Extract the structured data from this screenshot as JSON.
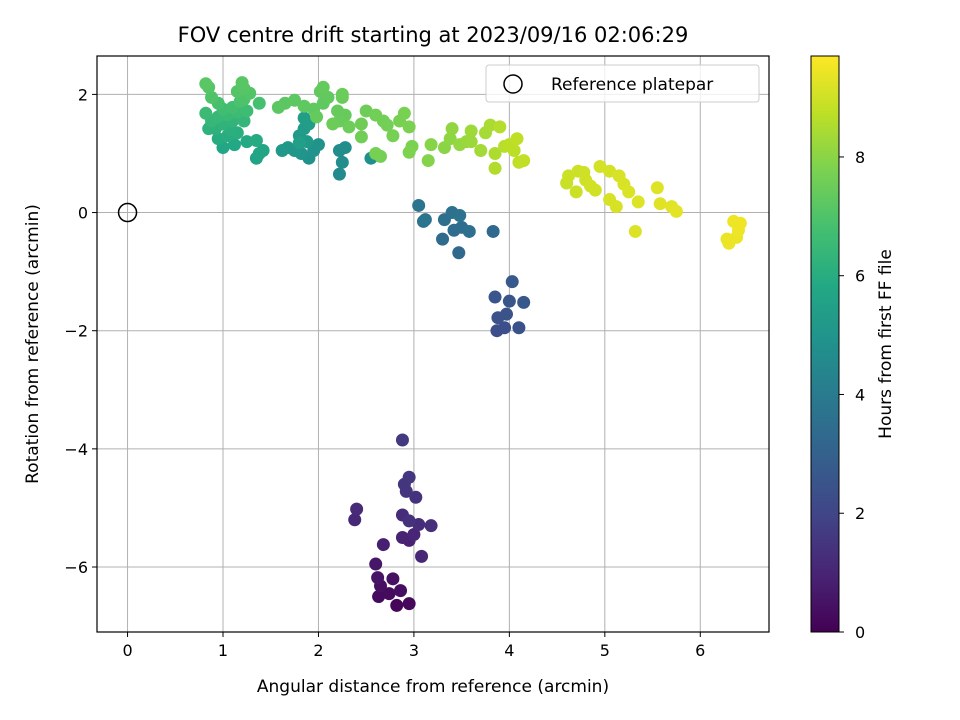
{
  "chart_data": {
    "type": "scatter",
    "title": "FOV centre drift starting at 2023/09/16 02:06:29",
    "xlabel": "Angular distance from reference (arcmin)",
    "ylabel": "Rotation from reference (arcmin)",
    "xlim": [
      -0.32,
      6.72
    ],
    "ylim": [
      -7.1,
      2.65
    ],
    "xticks": [
      0,
      1,
      2,
      3,
      4,
      5,
      6
    ],
    "yticks": [
      -6,
      -4,
      -2,
      0,
      2
    ],
    "xtick_labels": [
      "0",
      "1",
      "2",
      "3",
      "4",
      "5",
      "6"
    ],
    "ytick_labels": [
      "−6",
      "−4",
      "−2",
      "0",
      "2"
    ],
    "grid": true,
    "legend": {
      "placement": "top-right",
      "entries": [
        {
          "label": "Reference platepar",
          "marker": "open-circle"
        }
      ]
    },
    "reference_point": {
      "x": 0,
      "y": 0
    },
    "colorbar": {
      "label": "Hours from first FF file",
      "range": [
        0,
        9.7
      ],
      "ticks": [
        0,
        2,
        4,
        6,
        8
      ],
      "tick_labels": [
        "0",
        "2",
        "4",
        "6",
        "8"
      ],
      "colormap": "viridis"
    },
    "points": [
      {
        "x": 2.82,
        "y": -6.65,
        "t": 0.15
      },
      {
        "x": 2.95,
        "y": -6.62,
        "t": 0.2
      },
      {
        "x": 2.63,
        "y": -6.5,
        "t": 0.25
      },
      {
        "x": 2.74,
        "y": -6.45,
        "t": 0.3
      },
      {
        "x": 2.86,
        "y": -6.4,
        "t": 0.35
      },
      {
        "x": 2.65,
        "y": -6.32,
        "t": 0.4
      },
      {
        "x": 2.78,
        "y": -6.2,
        "t": 0.45
      },
      {
        "x": 2.62,
        "y": -6.18,
        "t": 0.5
      },
      {
        "x": 2.6,
        "y": -5.95,
        "t": 0.6
      },
      {
        "x": 2.68,
        "y": -5.62,
        "t": 0.85
      },
      {
        "x": 2.95,
        "y": -5.55,
        "t": 0.9
      },
      {
        "x": 2.88,
        "y": -5.5,
        "t": 0.95
      },
      {
        "x": 3.0,
        "y": -5.45,
        "t": 1.0
      },
      {
        "x": 3.08,
        "y": -5.82,
        "t": 1.05
      },
      {
        "x": 2.38,
        "y": -5.2,
        "t": 1.1
      },
      {
        "x": 2.4,
        "y": -5.02,
        "t": 1.15
      },
      {
        "x": 2.88,
        "y": -5.12,
        "t": 1.2
      },
      {
        "x": 3.05,
        "y": -5.28,
        "t": 1.25
      },
      {
        "x": 3.18,
        "y": -5.3,
        "t": 1.3
      },
      {
        "x": 2.95,
        "y": -5.22,
        "t": 1.35
      },
      {
        "x": 3.02,
        "y": -4.82,
        "t": 1.4
      },
      {
        "x": 2.92,
        "y": -4.72,
        "t": 1.45
      },
      {
        "x": 2.9,
        "y": -4.6,
        "t": 1.5
      },
      {
        "x": 2.95,
        "y": -4.48,
        "t": 1.55
      },
      {
        "x": 2.88,
        "y": -3.85,
        "t": 1.6
      },
      {
        "x": 3.87,
        "y": -2.0,
        "t": 2.3
      },
      {
        "x": 3.95,
        "y": -1.95,
        "t": 2.35
      },
      {
        "x": 4.1,
        "y": -1.95,
        "t": 2.4
      },
      {
        "x": 3.88,
        "y": -1.78,
        "t": 2.45
      },
      {
        "x": 3.97,
        "y": -1.72,
        "t": 2.5
      },
      {
        "x": 3.85,
        "y": -1.43,
        "t": 2.55
      },
      {
        "x": 4.0,
        "y": -1.5,
        "t": 2.6
      },
      {
        "x": 4.15,
        "y": -1.52,
        "t": 2.65
      },
      {
        "x": 4.03,
        "y": -1.17,
        "t": 2.7
      },
      {
        "x": 3.83,
        "y": -0.32,
        "t": 3.25
      },
      {
        "x": 3.47,
        "y": -0.68,
        "t": 3.3
      },
      {
        "x": 3.3,
        "y": -0.45,
        "t": 3.35
      },
      {
        "x": 3.42,
        "y": -0.3,
        "t": 3.4
      },
      {
        "x": 3.5,
        "y": -0.25,
        "t": 3.45
      },
      {
        "x": 3.58,
        "y": -0.32,
        "t": 3.5
      },
      {
        "x": 3.32,
        "y": -0.12,
        "t": 3.55
      },
      {
        "x": 3.4,
        "y": 0.0,
        "t": 3.6
      },
      {
        "x": 3.48,
        "y": -0.05,
        "t": 3.65
      },
      {
        "x": 3.1,
        "y": -0.15,
        "t": 3.7
      },
      {
        "x": 3.12,
        "y": -0.12,
        "t": 3.75
      },
      {
        "x": 3.05,
        "y": 0.12,
        "t": 3.8
      },
      {
        "x": 2.22,
        "y": 0.65,
        "t": 4.6
      },
      {
        "x": 2.25,
        "y": 0.85,
        "t": 4.65
      },
      {
        "x": 2.22,
        "y": 1.05,
        "t": 4.7
      },
      {
        "x": 2.28,
        "y": 1.1,
        "t": 4.75
      },
      {
        "x": 2.55,
        "y": 0.92,
        "t": 4.8
      },
      {
        "x": 1.9,
        "y": 0.92,
        "t": 4.85
      },
      {
        "x": 1.95,
        "y": 1.05,
        "t": 4.9
      },
      {
        "x": 2.0,
        "y": 1.15,
        "t": 4.95
      },
      {
        "x": 1.82,
        "y": 1.0,
        "t": 5.0
      },
      {
        "x": 1.75,
        "y": 1.05,
        "t": 5.05
      },
      {
        "x": 1.68,
        "y": 1.1,
        "t": 5.1
      },
      {
        "x": 1.62,
        "y": 1.05,
        "t": 5.15
      },
      {
        "x": 1.88,
        "y": 1.2,
        "t": 5.2
      },
      {
        "x": 1.8,
        "y": 1.3,
        "t": 5.25
      },
      {
        "x": 1.85,
        "y": 1.42,
        "t": 5.3
      },
      {
        "x": 1.9,
        "y": 1.5,
        "t": 5.35
      },
      {
        "x": 1.85,
        "y": 1.6,
        "t": 5.4
      },
      {
        "x": 1.8,
        "y": 1.18,
        "t": 5.45
      },
      {
        "x": 1.35,
        "y": 0.92,
        "t": 5.6
      },
      {
        "x": 1.38,
        "y": 1.0,
        "t": 5.65
      },
      {
        "x": 1.42,
        "y": 1.05,
        "t": 5.7
      },
      {
        "x": 1.0,
        "y": 1.1,
        "t": 5.75
      },
      {
        "x": 1.12,
        "y": 1.15,
        "t": 5.8
      },
      {
        "x": 1.25,
        "y": 1.2,
        "t": 5.85
      },
      {
        "x": 1.35,
        "y": 1.22,
        "t": 5.9
      },
      {
        "x": 0.95,
        "y": 1.25,
        "t": 5.95
      },
      {
        "x": 1.05,
        "y": 1.3,
        "t": 6.0
      },
      {
        "x": 1.15,
        "y": 1.35,
        "t": 6.05
      },
      {
        "x": 1.08,
        "y": 1.4,
        "t": 6.1
      },
      {
        "x": 0.92,
        "y": 1.42,
        "t": 6.15
      },
      {
        "x": 0.85,
        "y": 1.42,
        "t": 6.2
      },
      {
        "x": 1.0,
        "y": 1.5,
        "t": 6.25
      },
      {
        "x": 1.1,
        "y": 1.55,
        "t": 6.3
      },
      {
        "x": 1.22,
        "y": 1.55,
        "t": 6.35
      },
      {
        "x": 0.88,
        "y": 1.55,
        "t": 6.4
      },
      {
        "x": 0.95,
        "y": 1.62,
        "t": 6.45
      },
      {
        "x": 1.05,
        "y": 1.65,
        "t": 6.5
      },
      {
        "x": 0.82,
        "y": 1.68,
        "t": 6.55
      },
      {
        "x": 1.15,
        "y": 1.7,
        "t": 6.6
      },
      {
        "x": 1.25,
        "y": 1.72,
        "t": 6.65
      },
      {
        "x": 1.0,
        "y": 1.75,
        "t": 6.7
      },
      {
        "x": 1.1,
        "y": 1.78,
        "t": 6.75
      },
      {
        "x": 1.38,
        "y": 1.85,
        "t": 6.8
      },
      {
        "x": 0.95,
        "y": 1.85,
        "t": 6.85
      },
      {
        "x": 1.18,
        "y": 1.88,
        "t": 6.9
      },
      {
        "x": 1.22,
        "y": 1.92,
        "t": 6.95
      },
      {
        "x": 0.88,
        "y": 1.95,
        "t": 7.0
      },
      {
        "x": 1.28,
        "y": 2.02,
        "t": 7.05
      },
      {
        "x": 1.15,
        "y": 2.05,
        "t": 7.08
      },
      {
        "x": 0.85,
        "y": 2.12,
        "t": 7.1
      },
      {
        "x": 1.22,
        "y": 2.1,
        "t": 7.12
      },
      {
        "x": 1.2,
        "y": 2.2,
        "t": 7.15
      },
      {
        "x": 0.82,
        "y": 2.18,
        "t": 7.18
      },
      {
        "x": 1.58,
        "y": 1.78,
        "t": 7.2
      },
      {
        "x": 1.65,
        "y": 1.85,
        "t": 7.22
      },
      {
        "x": 1.75,
        "y": 1.9,
        "t": 7.24
      },
      {
        "x": 1.85,
        "y": 1.8,
        "t": 7.26
      },
      {
        "x": 1.95,
        "y": 1.75,
        "t": 7.28
      },
      {
        "x": 2.05,
        "y": 1.85,
        "t": 7.3
      },
      {
        "x": 2.1,
        "y": 1.95,
        "t": 7.32
      },
      {
        "x": 2.02,
        "y": 2.05,
        "t": 7.34
      },
      {
        "x": 2.05,
        "y": 2.12,
        "t": 7.36
      },
      {
        "x": 1.98,
        "y": 1.62,
        "t": 7.38
      },
      {
        "x": 2.2,
        "y": 1.72,
        "t": 7.4
      },
      {
        "x": 2.28,
        "y": 1.65,
        "t": 7.42
      },
      {
        "x": 2.22,
        "y": 1.55,
        "t": 7.44
      },
      {
        "x": 2.25,
        "y": 1.95,
        "t": 7.46
      },
      {
        "x": 2.25,
        "y": 2.0,
        "t": 7.48
      },
      {
        "x": 2.15,
        "y": 1.5,
        "t": 7.5
      },
      {
        "x": 2.32,
        "y": 1.45,
        "t": 7.52
      },
      {
        "x": 2.5,
        "y": 1.72,
        "t": 7.54
      },
      {
        "x": 2.45,
        "y": 1.5,
        "t": 7.56
      },
      {
        "x": 2.45,
        "y": 1.28,
        "t": 7.58
      },
      {
        "x": 2.6,
        "y": 1.65,
        "t": 7.6
      },
      {
        "x": 2.68,
        "y": 1.55,
        "t": 7.62
      },
      {
        "x": 2.72,
        "y": 1.48,
        "t": 7.64
      },
      {
        "x": 2.65,
        "y": 0.95,
        "t": 7.66
      },
      {
        "x": 2.6,
        "y": 1.0,
        "t": 7.68
      },
      {
        "x": 2.78,
        "y": 1.3,
        "t": 7.7
      },
      {
        "x": 2.85,
        "y": 1.55,
        "t": 7.72
      },
      {
        "x": 2.9,
        "y": 1.68,
        "t": 7.74
      },
      {
        "x": 2.95,
        "y": 1.45,
        "t": 7.76
      },
      {
        "x": 2.98,
        "y": 1.12,
        "t": 7.78
      },
      {
        "x": 2.95,
        "y": 1.02,
        "t": 7.8
      },
      {
        "x": 3.15,
        "y": 0.88,
        "t": 7.9
      },
      {
        "x": 3.18,
        "y": 1.15,
        "t": 7.95
      },
      {
        "x": 3.32,
        "y": 1.1,
        "t": 8.0
      },
      {
        "x": 3.38,
        "y": 1.25,
        "t": 8.05
      },
      {
        "x": 3.4,
        "y": 1.42,
        "t": 8.1
      },
      {
        "x": 3.48,
        "y": 1.15,
        "t": 8.15
      },
      {
        "x": 3.55,
        "y": 1.2,
        "t": 8.2
      },
      {
        "x": 3.6,
        "y": 1.2,
        "t": 8.25
      },
      {
        "x": 3.6,
        "y": 1.38,
        "t": 8.3
      },
      {
        "x": 3.7,
        "y": 1.05,
        "t": 8.35
      },
      {
        "x": 3.75,
        "y": 1.35,
        "t": 8.4
      },
      {
        "x": 3.8,
        "y": 1.48,
        "t": 8.45
      },
      {
        "x": 3.85,
        "y": 1.0,
        "t": 8.5
      },
      {
        "x": 3.85,
        "y": 0.75,
        "t": 8.55
      },
      {
        "x": 3.9,
        "y": 1.45,
        "t": 8.6
      },
      {
        "x": 3.95,
        "y": 1.12,
        "t": 8.65
      },
      {
        "x": 4.05,
        "y": 1.05,
        "t": 8.7
      },
      {
        "x": 4.0,
        "y": 1.15,
        "t": 8.72
      },
      {
        "x": 4.08,
        "y": 1.25,
        "t": 8.74
      },
      {
        "x": 4.1,
        "y": 0.85,
        "t": 8.76
      },
      {
        "x": 4.15,
        "y": 0.88,
        "t": 8.78
      },
      {
        "x": 4.6,
        "y": 0.5,
        "t": 8.9
      },
      {
        "x": 4.62,
        "y": 0.62,
        "t": 8.92
      },
      {
        "x": 4.7,
        "y": 0.35,
        "t": 8.94
      },
      {
        "x": 4.72,
        "y": 0.7,
        "t": 8.96
      },
      {
        "x": 4.78,
        "y": 0.68,
        "t": 8.98
      },
      {
        "x": 4.8,
        "y": 0.55,
        "t": 9.0
      },
      {
        "x": 4.85,
        "y": 0.45,
        "t": 9.02
      },
      {
        "x": 4.9,
        "y": 0.38,
        "t": 9.04
      },
      {
        "x": 4.95,
        "y": 0.78,
        "t": 9.06
      },
      {
        "x": 5.05,
        "y": 0.7,
        "t": 9.08
      },
      {
        "x": 5.05,
        "y": 0.22,
        "t": 9.1
      },
      {
        "x": 5.12,
        "y": 0.1,
        "t": 9.12
      },
      {
        "x": 5.15,
        "y": 0.62,
        "t": 9.14
      },
      {
        "x": 5.2,
        "y": 0.48,
        "t": 9.16
      },
      {
        "x": 5.25,
        "y": 0.35,
        "t": 9.18
      },
      {
        "x": 5.32,
        "y": -0.32,
        "t": 9.2
      },
      {
        "x": 5.35,
        "y": 0.18,
        "t": 9.22
      },
      {
        "x": 5.55,
        "y": 0.42,
        "t": 9.24
      },
      {
        "x": 5.58,
        "y": 0.15,
        "t": 9.26
      },
      {
        "x": 5.7,
        "y": 0.1,
        "t": 9.28
      },
      {
        "x": 5.75,
        "y": 0.02,
        "t": 9.3
      },
      {
        "x": 6.28,
        "y": -0.45,
        "t": 9.4
      },
      {
        "x": 6.3,
        "y": -0.52,
        "t": 9.42
      },
      {
        "x": 6.38,
        "y": -0.42,
        "t": 9.44
      },
      {
        "x": 6.4,
        "y": -0.3,
        "t": 9.46
      },
      {
        "x": 6.35,
        "y": -0.15,
        "t": 9.48
      },
      {
        "x": 6.42,
        "y": -0.18,
        "t": 9.5
      }
    ]
  }
}
